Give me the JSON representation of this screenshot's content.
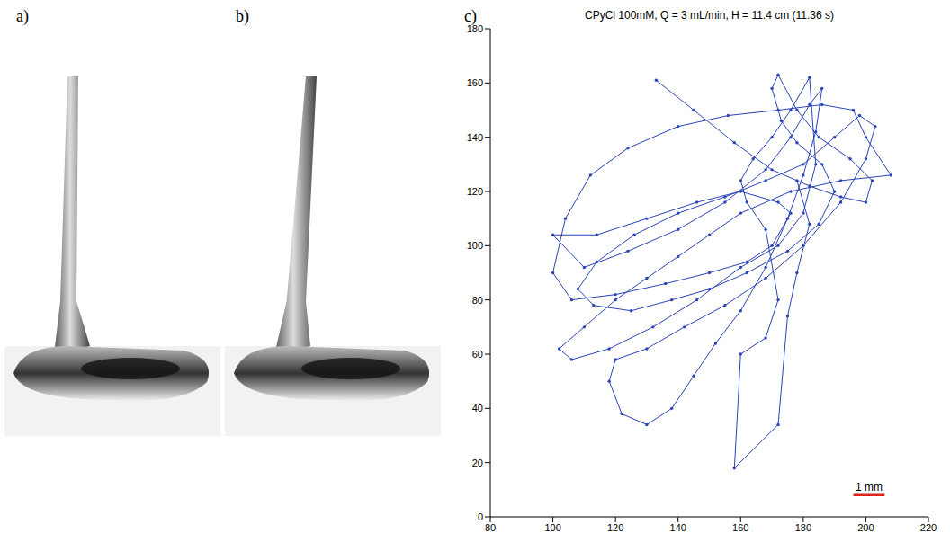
{
  "panel_labels": [
    "a)",
    "b)",
    "c)"
  ],
  "chart_data": {
    "type": "line",
    "title": "CPyCl 100mM, Q = 3 mL/min, H = 11.4 cm (11.36 s)",
    "x": [
      133,
      145,
      158,
      170,
      182,
      192,
      200,
      202,
      195,
      185,
      178,
      172,
      170,
      173,
      178,
      186,
      190,
      185,
      175,
      162,
      150,
      138,
      125,
      113,
      108,
      114,
      126,
      140,
      155,
      168,
      180,
      190,
      198,
      203,
      200,
      192,
      180,
      168,
      155,
      142,
      130,
      120,
      118,
      122,
      130,
      138,
      145,
      152,
      160,
      168,
      175,
      180,
      184,
      186,
      182,
      176,
      168,
      155,
      140,
      124,
      110,
      100,
      114,
      130,
      146,
      160,
      172,
      176,
      170,
      162,
      150,
      136,
      120,
      106,
      100,
      104,
      112,
      124,
      140,
      156,
      172,
      186,
      196,
      200,
      208,
      192,
      176,
      160,
      150,
      140,
      130,
      120,
      110,
      102,
      106,
      118,
      132,
      146,
      160,
      172,
      180,
      184,
      182,
      176,
      170,
      164,
      160,
      162,
      168,
      172,
      168,
      160,
      158,
      172,
      175,
      178,
      182,
      178
    ],
    "values": [
      161,
      150,
      138,
      128,
      122,
      118,
      116,
      124,
      132,
      140,
      150,
      163,
      158,
      146,
      138,
      130,
      120,
      108,
      98,
      90,
      84,
      80,
      76,
      78,
      84,
      94,
      104,
      112,
      118,
      124,
      130,
      140,
      148,
      144,
      132,
      116,
      100,
      88,
      78,
      70,
      62,
      58,
      50,
      38,
      34,
      40,
      52,
      64,
      76,
      92,
      110,
      126,
      142,
      158,
      152,
      140,
      128,
      116,
      106,
      98,
      92,
      104,
      104,
      110,
      116,
      120,
      116,
      112,
      100,
      94,
      90,
      86,
      82,
      80,
      90,
      110,
      126,
      136,
      144,
      148,
      150,
      152,
      150,
      140,
      126,
      124,
      120,
      112,
      104,
      96,
      88,
      80,
      70,
      62,
      58,
      62,
      70,
      80,
      92,
      100,
      112,
      130,
      162,
      150,
      140,
      132,
      124,
      116,
      106,
      80,
      66,
      60,
      18,
      34,
      74,
      90,
      108,
      124
    ],
    "color": "#2a44b8",
    "marker": "circle",
    "line_style": "solid",
    "xlim": [
      80,
      220
    ],
    "xticks": [
      80,
      100,
      120,
      140,
      160,
      180,
      200,
      220
    ],
    "ylim": [
      0,
      180
    ],
    "yticks": [
      0,
      20,
      40,
      60,
      80,
      100,
      120,
      140,
      160,
      180
    ],
    "annotations": [
      {
        "text": "1 mm",
        "x": [
          196,
          206
        ],
        "y": 8,
        "color": "#e0201a"
      }
    ]
  }
}
